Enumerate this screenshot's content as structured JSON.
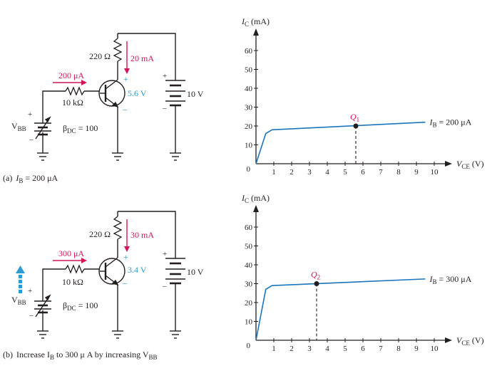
{
  "colors": {
    "ink": "#231f20",
    "magenta": "#d4145a",
    "cyan": "#2b9bd3",
    "line": "#1b75bc"
  },
  "circuits": [
    {
      "caption_prefix": "(a)",
      "caption_text": "I",
      "caption_sub": "B",
      "caption_suffix": " = 200 μA",
      "caption_extra": "",
      "caption_extra_sub": "",
      "resistor_rc": "220 Ω",
      "ic_label": "20 mA",
      "ib_label": "200 μA",
      "rb_label": "10 kΩ",
      "vce_label": "5.6 V",
      "vcc_label": "10 V",
      "vbb_label": "V",
      "vbb_sub": "BB",
      "beta_label": "β",
      "beta_sub": "DC",
      "beta_value": " = 100",
      "plus": "+",
      "minus": "–",
      "show_arrow": false
    },
    {
      "caption_prefix": "(b)",
      "caption_text": "Increase I",
      "caption_sub": "B",
      "caption_suffix": " to 300 μ A by increasing V",
      "caption_extra": "",
      "caption_extra_sub": "BB",
      "resistor_rc": "220 Ω",
      "ic_label": "30 mA",
      "ib_label": "300 μA",
      "rb_label": "10 kΩ",
      "vce_label": "3.4 V",
      "vcc_label": "10 V",
      "vbb_label": "V",
      "vbb_sub": "BB",
      "beta_label": "β",
      "beta_sub": "DC",
      "beta_value": " = 100",
      "plus": "+",
      "minus": "–",
      "show_arrow": true
    }
  ],
  "chart_data": [
    {
      "type": "line",
      "ylabel": "I",
      "ylabel_sub": "C",
      "ylabel_unit": " (mA)",
      "xlabel": "V",
      "xlabel_sub": "CE",
      "xlabel_unit": " (V)",
      "origin_label": "0",
      "x_ticks": [
        1,
        2,
        3,
        4,
        5,
        6,
        7,
        8,
        9,
        10
      ],
      "y_ticks": [
        10,
        20,
        30,
        40,
        50,
        60
      ],
      "xlim": [
        0,
        11.2
      ],
      "ylim": [
        0,
        66
      ],
      "series": [
        {
          "x": [
            0,
            0.55,
            0.9,
            9.5
          ],
          "y": [
            0,
            16,
            18,
            22
          ]
        }
      ],
      "curve_label": "I",
      "curve_label_sub": "B",
      "curve_label_value": " = 200 μA",
      "q_point": {
        "label": "Q",
        "sub": "1",
        "x": 5.6,
        "y": 20
      }
    },
    {
      "type": "line",
      "ylabel": "I",
      "ylabel_sub": "C",
      "ylabel_unit": " (mA)",
      "xlabel": "V",
      "xlabel_sub": "CE",
      "xlabel_unit": " (V)",
      "origin_label": "0",
      "x_ticks": [
        1,
        2,
        3,
        4,
        5,
        6,
        7,
        8,
        9,
        10
      ],
      "y_ticks": [
        10,
        20,
        30,
        40,
        50,
        60
      ],
      "xlim": [
        0,
        11.2
      ],
      "ylim": [
        0,
        66
      ],
      "series": [
        {
          "x": [
            0,
            0.55,
            0.9,
            9.5
          ],
          "y": [
            0,
            27,
            29,
            32.5
          ]
        }
      ],
      "curve_label": "I",
      "curve_label_sub": "B",
      "curve_label_value": " = 300 μA",
      "q_point": {
        "label": "Q",
        "sub": "2",
        "x": 3.4,
        "y": 30
      }
    }
  ]
}
